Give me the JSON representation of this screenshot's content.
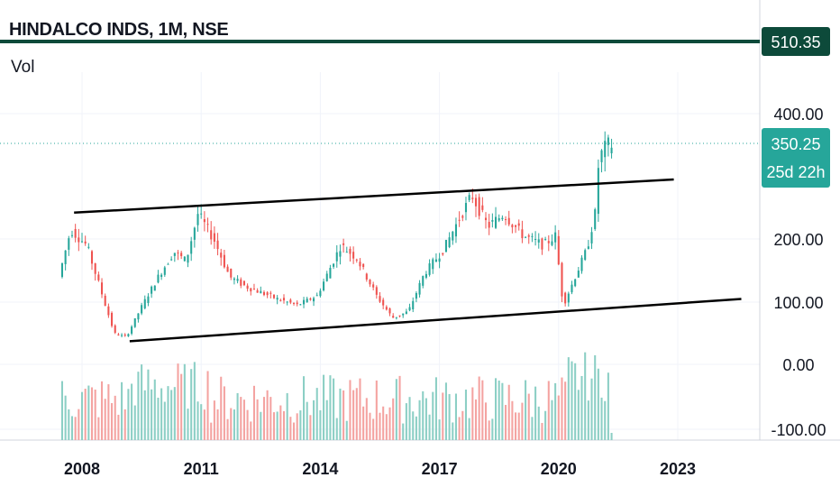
{
  "header": {
    "title": "HINDALCO INDS, 1M, NSE",
    "volume_label": "Vol"
  },
  "colors": {
    "up": "#26a69a",
    "down": "#ef5350",
    "up_vol": "#8ccfc5",
    "down_vol": "#f4a3a1",
    "resistance": "#0d4a3a",
    "price_tag": "#26a69a"
  },
  "chart_data": {
    "type": "candlestick",
    "title": "HINDALCO INDS, 1M, NSE",
    "x_axis": {
      "ticks": [
        "2008",
        "2011",
        "2014",
        "2017",
        "2020",
        "2023"
      ]
    },
    "y_axis": {
      "ticks": [
        "400.00",
        "200.00",
        "100.00",
        "0.00",
        "-100.00"
      ]
    },
    "price_labels": {
      "resistance": {
        "value": "510.35"
      },
      "last": {
        "value": "350.25",
        "countdown": "25d 22h"
      }
    },
    "trendlines": [
      {
        "name": "channel-top",
        "from": {
          "year": 2007.8,
          "price": 242
        },
        "to": {
          "year": 2022.9,
          "price": 295
        }
      },
      {
        "name": "channel-bottom",
        "from": {
          "year": 2009.2,
          "price": 38
        },
        "to": {
          "year": 2024.6,
          "price": 105
        }
      }
    ],
    "horizontal_line": {
      "price": 510.35
    },
    "series": [
      {
        "year": 2007.5,
        "price": 140
      },
      {
        "year": 2007.8,
        "price": 215
      },
      {
        "year": 2008.2,
        "price": 190
      },
      {
        "year": 2008.6,
        "price": 110
      },
      {
        "year": 2008.9,
        "price": 50
      },
      {
        "year": 2009.2,
        "price": 45
      },
      {
        "year": 2009.6,
        "price": 95
      },
      {
        "year": 2010.0,
        "price": 140
      },
      {
        "year": 2010.4,
        "price": 180
      },
      {
        "year": 2010.7,
        "price": 165
      },
      {
        "year": 2011.0,
        "price": 240
      },
      {
        "year": 2011.4,
        "price": 200
      },
      {
        "year": 2011.8,
        "price": 140
      },
      {
        "year": 2012.2,
        "price": 125
      },
      {
        "year": 2012.6,
        "price": 115
      },
      {
        "year": 2013.0,
        "price": 105
      },
      {
        "year": 2013.5,
        "price": 95
      },
      {
        "year": 2014.0,
        "price": 110
      },
      {
        "year": 2014.6,
        "price": 190
      },
      {
        "year": 2015.0,
        "price": 170
      },
      {
        "year": 2015.5,
        "price": 110
      },
      {
        "year": 2015.9,
        "price": 75
      },
      {
        "year": 2016.3,
        "price": 85
      },
      {
        "year": 2016.7,
        "price": 145
      },
      {
        "year": 2017.2,
        "price": 185
      },
      {
        "year": 2017.6,
        "price": 235
      },
      {
        "year": 2017.9,
        "price": 270
      },
      {
        "year": 2018.3,
        "price": 220
      },
      {
        "year": 2018.7,
        "price": 240
      },
      {
        "year": 2019.2,
        "price": 205
      },
      {
        "year": 2019.7,
        "price": 190
      },
      {
        "year": 2020.0,
        "price": 205
      },
      {
        "year": 2020.2,
        "price": 95
      },
      {
        "year": 2020.5,
        "price": 140
      },
      {
        "year": 2020.8,
        "price": 185
      },
      {
        "year": 2021.0,
        "price": 240
      },
      {
        "year": 2021.1,
        "price": 330
      },
      {
        "year": 2021.3,
        "price": 350
      }
    ]
  }
}
